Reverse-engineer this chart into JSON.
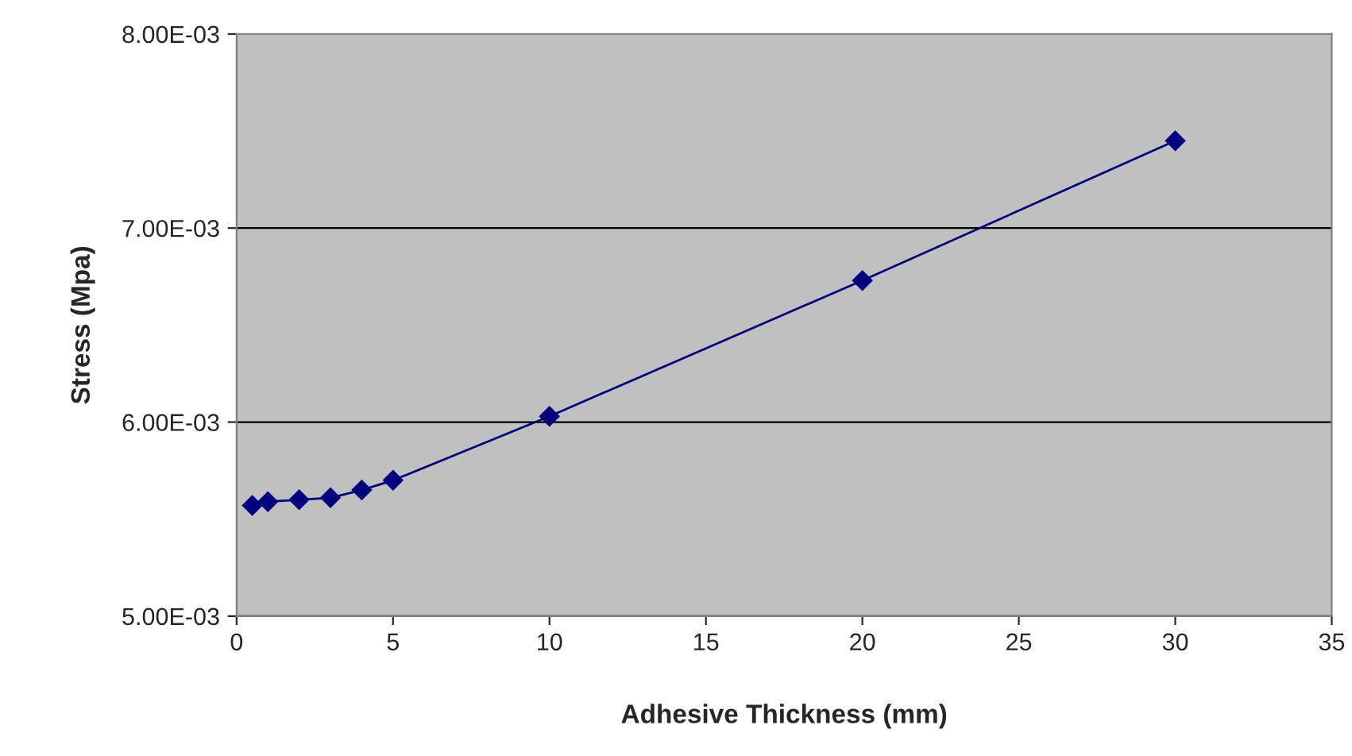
{
  "chart_data": {
    "type": "line",
    "xlabel": "Adhesive Thickness (mm)",
    "ylabel": "Stress (Mpa)",
    "x": [
      0.5,
      1,
      2,
      3,
      4,
      5,
      10,
      20,
      30
    ],
    "series": [
      {
        "color": "#000080",
        "values": [
          0.00557,
          0.00559,
          0.0056,
          0.00561,
          0.00565,
          0.0057,
          0.00603,
          0.00673,
          0.00745
        ]
      }
    ],
    "xlim": [
      0,
      35
    ],
    "xticks": [
      0,
      5,
      10,
      15,
      20,
      25,
      30,
      35
    ],
    "ylim": [
      0.005,
      0.008
    ],
    "yticks": [
      {
        "value": 0.005,
        "label": "5.00E-03"
      },
      {
        "value": 0.006,
        "label": "6.00E-03"
      },
      {
        "value": 0.007,
        "label": "7.00E-03"
      },
      {
        "value": 0.008,
        "label": "8.00E-03"
      }
    ],
    "grid": "y",
    "marker": "diamond",
    "line_style": "solid"
  }
}
